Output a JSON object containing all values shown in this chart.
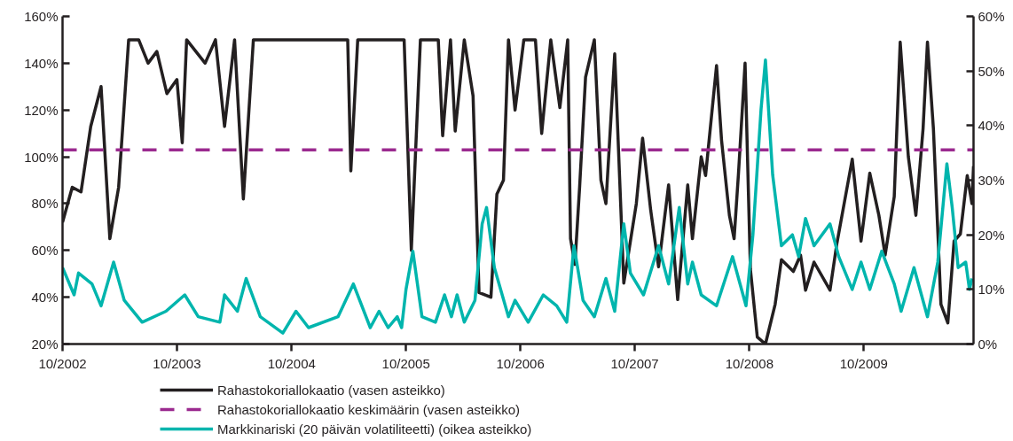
{
  "chart_data": {
    "type": "line",
    "xlim": [
      "2002-10-01",
      "2010-09-16"
    ],
    "xticks": [
      {
        "value": "2002-10-01",
        "label": "10/2002"
      },
      {
        "value": "2003-10-01",
        "label": "10/2003"
      },
      {
        "value": "2004-10-01",
        "label": "10/2004"
      },
      {
        "value": "2005-10-01",
        "label": "10/2005"
      },
      {
        "value": "2006-10-01",
        "label": "10/2006"
      },
      {
        "value": "2007-10-01",
        "label": "10/2007"
      },
      {
        "value": "2008-10-01",
        "label": "10/2008"
      },
      {
        "value": "2009-10-01",
        "label": "10/2009"
      }
    ],
    "ylim": [
      20,
      160
    ],
    "yticks": [
      {
        "value": 20,
        "label": "20%"
      },
      {
        "value": 40,
        "label": "40%"
      },
      {
        "value": 60,
        "label": "60%"
      },
      {
        "value": 80,
        "label": "80%"
      },
      {
        "value": 100,
        "label": "100%"
      },
      {
        "value": 120,
        "label": "120%"
      },
      {
        "value": 140,
        "label": "140%"
      },
      {
        "value": 160,
        "label": "160%"
      }
    ],
    "y2lim": [
      0,
      60
    ],
    "y2ticks": [
      {
        "value": 0,
        "label": "0%"
      },
      {
        "value": 10,
        "label": "10%"
      },
      {
        "value": 20,
        "label": "20%"
      },
      {
        "value": 30,
        "label": "30%"
      },
      {
        "value": 40,
        "label": "40%"
      },
      {
        "value": 50,
        "label": "50%"
      },
      {
        "value": 60,
        "label": "60%"
      }
    ],
    "grid": false,
    "legend": "bottom",
    "marker": "none",
    "series": [
      {
        "name": "Rahastokoriallokaatio (vasen asteikko)",
        "color": "#231f20",
        "line_style": "solid",
        "x": [
          "2002-10-01",
          "2002-11-01",
          "2002-11-29",
          "2002-12-30",
          "2003-02-01",
          "2003-03-01",
          "2003-03-29",
          "2003-04-30",
          "2003-06-01",
          "2003-07-01",
          "2003-07-29",
          "2003-08-30",
          "2003-10-01",
          "2003-10-18",
          "2003-11-01",
          "2003-12-30",
          "2004-02-01",
          "2004-03-01",
          "2004-04-02",
          "2004-04-30",
          "2004-06-01",
          "2005-03-29",
          "2005-04-08",
          "2005-04-30",
          "2005-09-25",
          "2005-10-18",
          "2005-11-16",
          "2006-01-12",
          "2006-01-26",
          "2006-02-20",
          "2006-03-07",
          "2006-04-05",
          "2006-05-03",
          "2006-05-22",
          "2006-06-29",
          "2006-07-18",
          "2006-08-08",
          "2006-08-24",
          "2006-09-14",
          "2006-10-12",
          "2006-11-18",
          "2006-12-08",
          "2007-01-06",
          "2007-02-04",
          "2007-03-01",
          "2007-03-10",
          "2007-03-24",
          "2007-04-08",
          "2007-04-27",
          "2007-05-25",
          "2007-06-15",
          "2007-07-01",
          "2007-07-29",
          "2007-08-27",
          "2007-10-06",
          "2007-10-26",
          "2007-11-21",
          "2007-12-16",
          "2008-01-17",
          "2008-02-15",
          "2008-03-18",
          "2008-04-02",
          "2008-04-30",
          "2008-05-14",
          "2008-06-18",
          "2008-07-04",
          "2008-07-29",
          "2008-08-13",
          "2008-08-27",
          "2008-09-17",
          "2008-10-04",
          "2008-10-26",
          "2008-11-21",
          "2008-12-22",
          "2009-01-11",
          "2009-02-18",
          "2009-03-13",
          "2009-03-29",
          "2009-04-25",
          "2009-06-15",
          "2009-07-07",
          "2009-08-25",
          "2009-09-22",
          "2009-10-20",
          "2009-11-18",
          "2009-12-08",
          "2010-01-06",
          "2010-01-25",
          "2010-02-20",
          "2010-03-16",
          "2010-04-08",
          "2010-04-22",
          "2010-05-11",
          "2010-06-04",
          "2010-06-26",
          "2010-07-16",
          "2010-08-05",
          "2010-08-27",
          "2010-09-11",
          "2010-09-16"
        ],
        "values": [
          72,
          87,
          85,
          113,
          130,
          65,
          87,
          150,
          150,
          140,
          145,
          127,
          133,
          106,
          150,
          140,
          150,
          113,
          150,
          82,
          150,
          150,
          94,
          150,
          150,
          60,
          150,
          150,
          109,
          150,
          111,
          150,
          126,
          42,
          40,
          84,
          90,
          150,
          120,
          150,
          150,
          110,
          150,
          121,
          150,
          65,
          54,
          87,
          134,
          150,
          90,
          80,
          144,
          46,
          80,
          108,
          77,
          53,
          88,
          39,
          88,
          65,
          100,
          92,
          139,
          107,
          75,
          65,
          93,
          140,
          52,
          23,
          20,
          37,
          56,
          51,
          58,
          43,
          55,
          43,
          63,
          99,
          64,
          93,
          75,
          58,
          83,
          149,
          100,
          75,
          112,
          149,
          112,
          37,
          29,
          64,
          67,
          92,
          80,
          96
        ]
      },
      {
        "name": "Rahastokoriallokaatio keskimäärin (vasen asteikko)",
        "color": "#9b2a8f",
        "line_style": "dashed",
        "x": [
          "2002-10-01",
          "2010-09-16"
        ],
        "values": [
          103,
          103
        ]
      },
      {
        "name": "Markkinariski (20 päivän volatiliteetti) (oikea asteikko)",
        "color": "#00b5ad",
        "line_style": "solid",
        "axis": "y2",
        "x": [
          "2002-10-01",
          "2002-11-07",
          "2002-11-21",
          "2003-01-03",
          "2003-02-01",
          "2003-03-13",
          "2003-04-16",
          "2003-06-12",
          "2003-08-27",
          "2003-10-26",
          "2003-12-08",
          "2004-02-15",
          "2004-03-01",
          "2004-04-11",
          "2004-05-09",
          "2004-06-23",
          "2004-09-03",
          "2004-10-15",
          "2004-11-24",
          "2005-02-26",
          "2005-04-16",
          "2005-06-09",
          "2005-07-07",
          "2005-08-05",
          "2005-09-03",
          "2005-09-17",
          "2005-10-01",
          "2005-10-23",
          "2005-11-21",
          "2006-01-03",
          "2006-02-01",
          "2006-02-23",
          "2006-03-13",
          "2006-04-05",
          "2006-05-09",
          "2006-06-01",
          "2006-06-15",
          "2006-07-10",
          "2006-08-24",
          "2006-09-14",
          "2006-10-26",
          "2006-12-13",
          "2007-01-25",
          "2007-02-26",
          "2007-03-21",
          "2007-04-19",
          "2007-05-25",
          "2007-07-01",
          "2007-07-29",
          "2007-08-27",
          "2007-09-17",
          "2007-10-29",
          "2007-12-16",
          "2008-01-17",
          "2008-02-20",
          "2008-03-18",
          "2008-04-02",
          "2008-04-30",
          "2008-06-18",
          "2008-08-08",
          "2008-09-20",
          "2008-10-12",
          "2008-11-07",
          "2008-11-21",
          "2008-12-14",
          "2009-01-11",
          "2009-02-15",
          "2009-03-07",
          "2009-03-29",
          "2009-04-25",
          "2009-06-15",
          "2009-07-13",
          "2009-08-25",
          "2009-09-22",
          "2009-10-20",
          "2009-11-27",
          "2010-01-06",
          "2010-01-28",
          "2010-03-10",
          "2010-04-22",
          "2010-05-25",
          "2010-06-23",
          "2010-07-10",
          "2010-07-29",
          "2010-08-22",
          "2010-09-03",
          "2010-09-11"
        ],
        "values": [
          14,
          9,
          13,
          11,
          7,
          15,
          8,
          4,
          6,
          9,
          5,
          4,
          9,
          6,
          12,
          5,
          2,
          6,
          3,
          5,
          11,
          3,
          6,
          3,
          5,
          3,
          10,
          17,
          5,
          4,
          9,
          5,
          9,
          4,
          8,
          22,
          25,
          14,
          5,
          8,
          4,
          9,
          7,
          4,
          18,
          8,
          5,
          12,
          6,
          22,
          13,
          9,
          18,
          11,
          25,
          11,
          15,
          9,
          7,
          16,
          7,
          20,
          43,
          52,
          31,
          18,
          20,
          16,
          23,
          18,
          22,
          16,
          10,
          15,
          10,
          17,
          11,
          6,
          14,
          5,
          15,
          33,
          25,
          14,
          15,
          10,
          12
        ]
      }
    ]
  }
}
